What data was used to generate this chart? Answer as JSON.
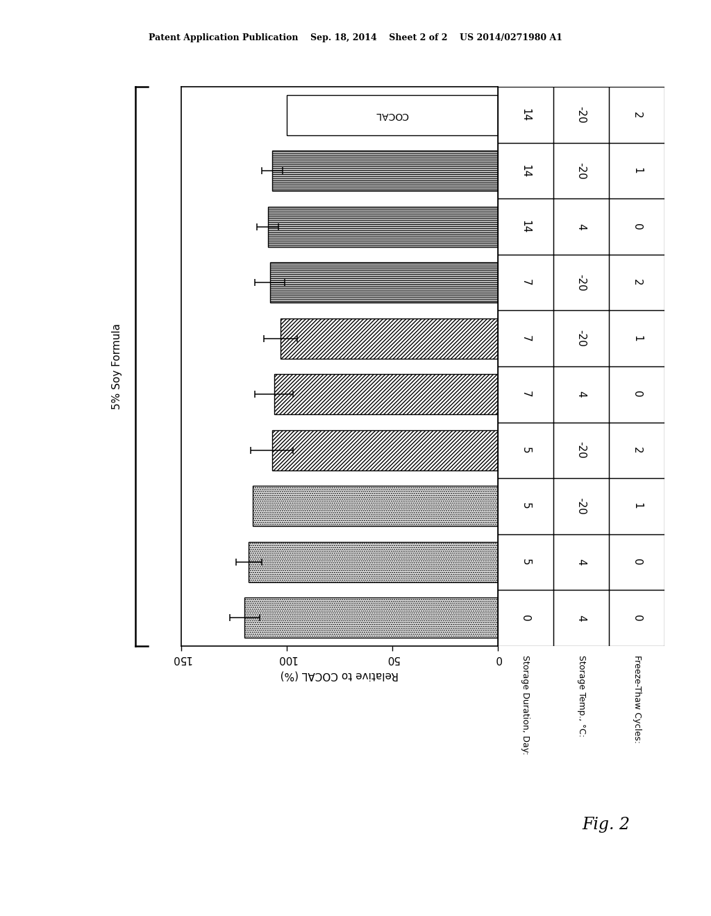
{
  "header": "Patent Application Publication    Sep. 18, 2014    Sheet 2 of 2    US 2014/0271980 A1",
  "fig_label": "Fig. 2",
  "ylabel": "5% Soy Formula",
  "xlabel": "Relative to COCAL (%)",
  "bars": [
    {
      "value": 100,
      "error": 0,
      "hatch": "",
      "day": "0",
      "temp": "4",
      "cycles": "0"
    },
    {
      "value": 107,
      "error": 5,
      "hatch": "horiz",
      "day": "5",
      "temp": "4",
      "cycles": "0"
    },
    {
      "value": 109,
      "error": 5,
      "hatch": "horiz",
      "day": "5",
      "temp": "-20",
      "cycles": "1"
    },
    {
      "value": 108,
      "error": 7,
      "hatch": "horiz",
      "day": "5",
      "temp": "-20",
      "cycles": "2"
    },
    {
      "value": 103,
      "error": 8,
      "hatch": "diag",
      "day": "7",
      "temp": "4",
      "cycles": "0"
    },
    {
      "value": 106,
      "error": 9,
      "hatch": "diag",
      "day": "7",
      "temp": "-20",
      "cycles": "1"
    },
    {
      "value": 107,
      "error": 10,
      "hatch": "diag",
      "day": "7",
      "temp": "-20",
      "cycles": "2"
    },
    {
      "value": 116,
      "error": 0,
      "hatch": "dots",
      "day": "14",
      "temp": "4",
      "cycles": "0"
    },
    {
      "value": 118,
      "error": 6,
      "hatch": "dots",
      "day": "14",
      "temp": "-20",
      "cycles": "1"
    },
    {
      "value": 120,
      "error": 7,
      "hatch": "dots",
      "day": "14",
      "temp": "-20",
      "cycles": "2"
    }
  ],
  "background_color": "#ffffff",
  "header_labels": [
    "Storage Duration, Day:",
    "Storage Temp., °C:",
    "Freeze-Thaw Cycles:"
  ]
}
